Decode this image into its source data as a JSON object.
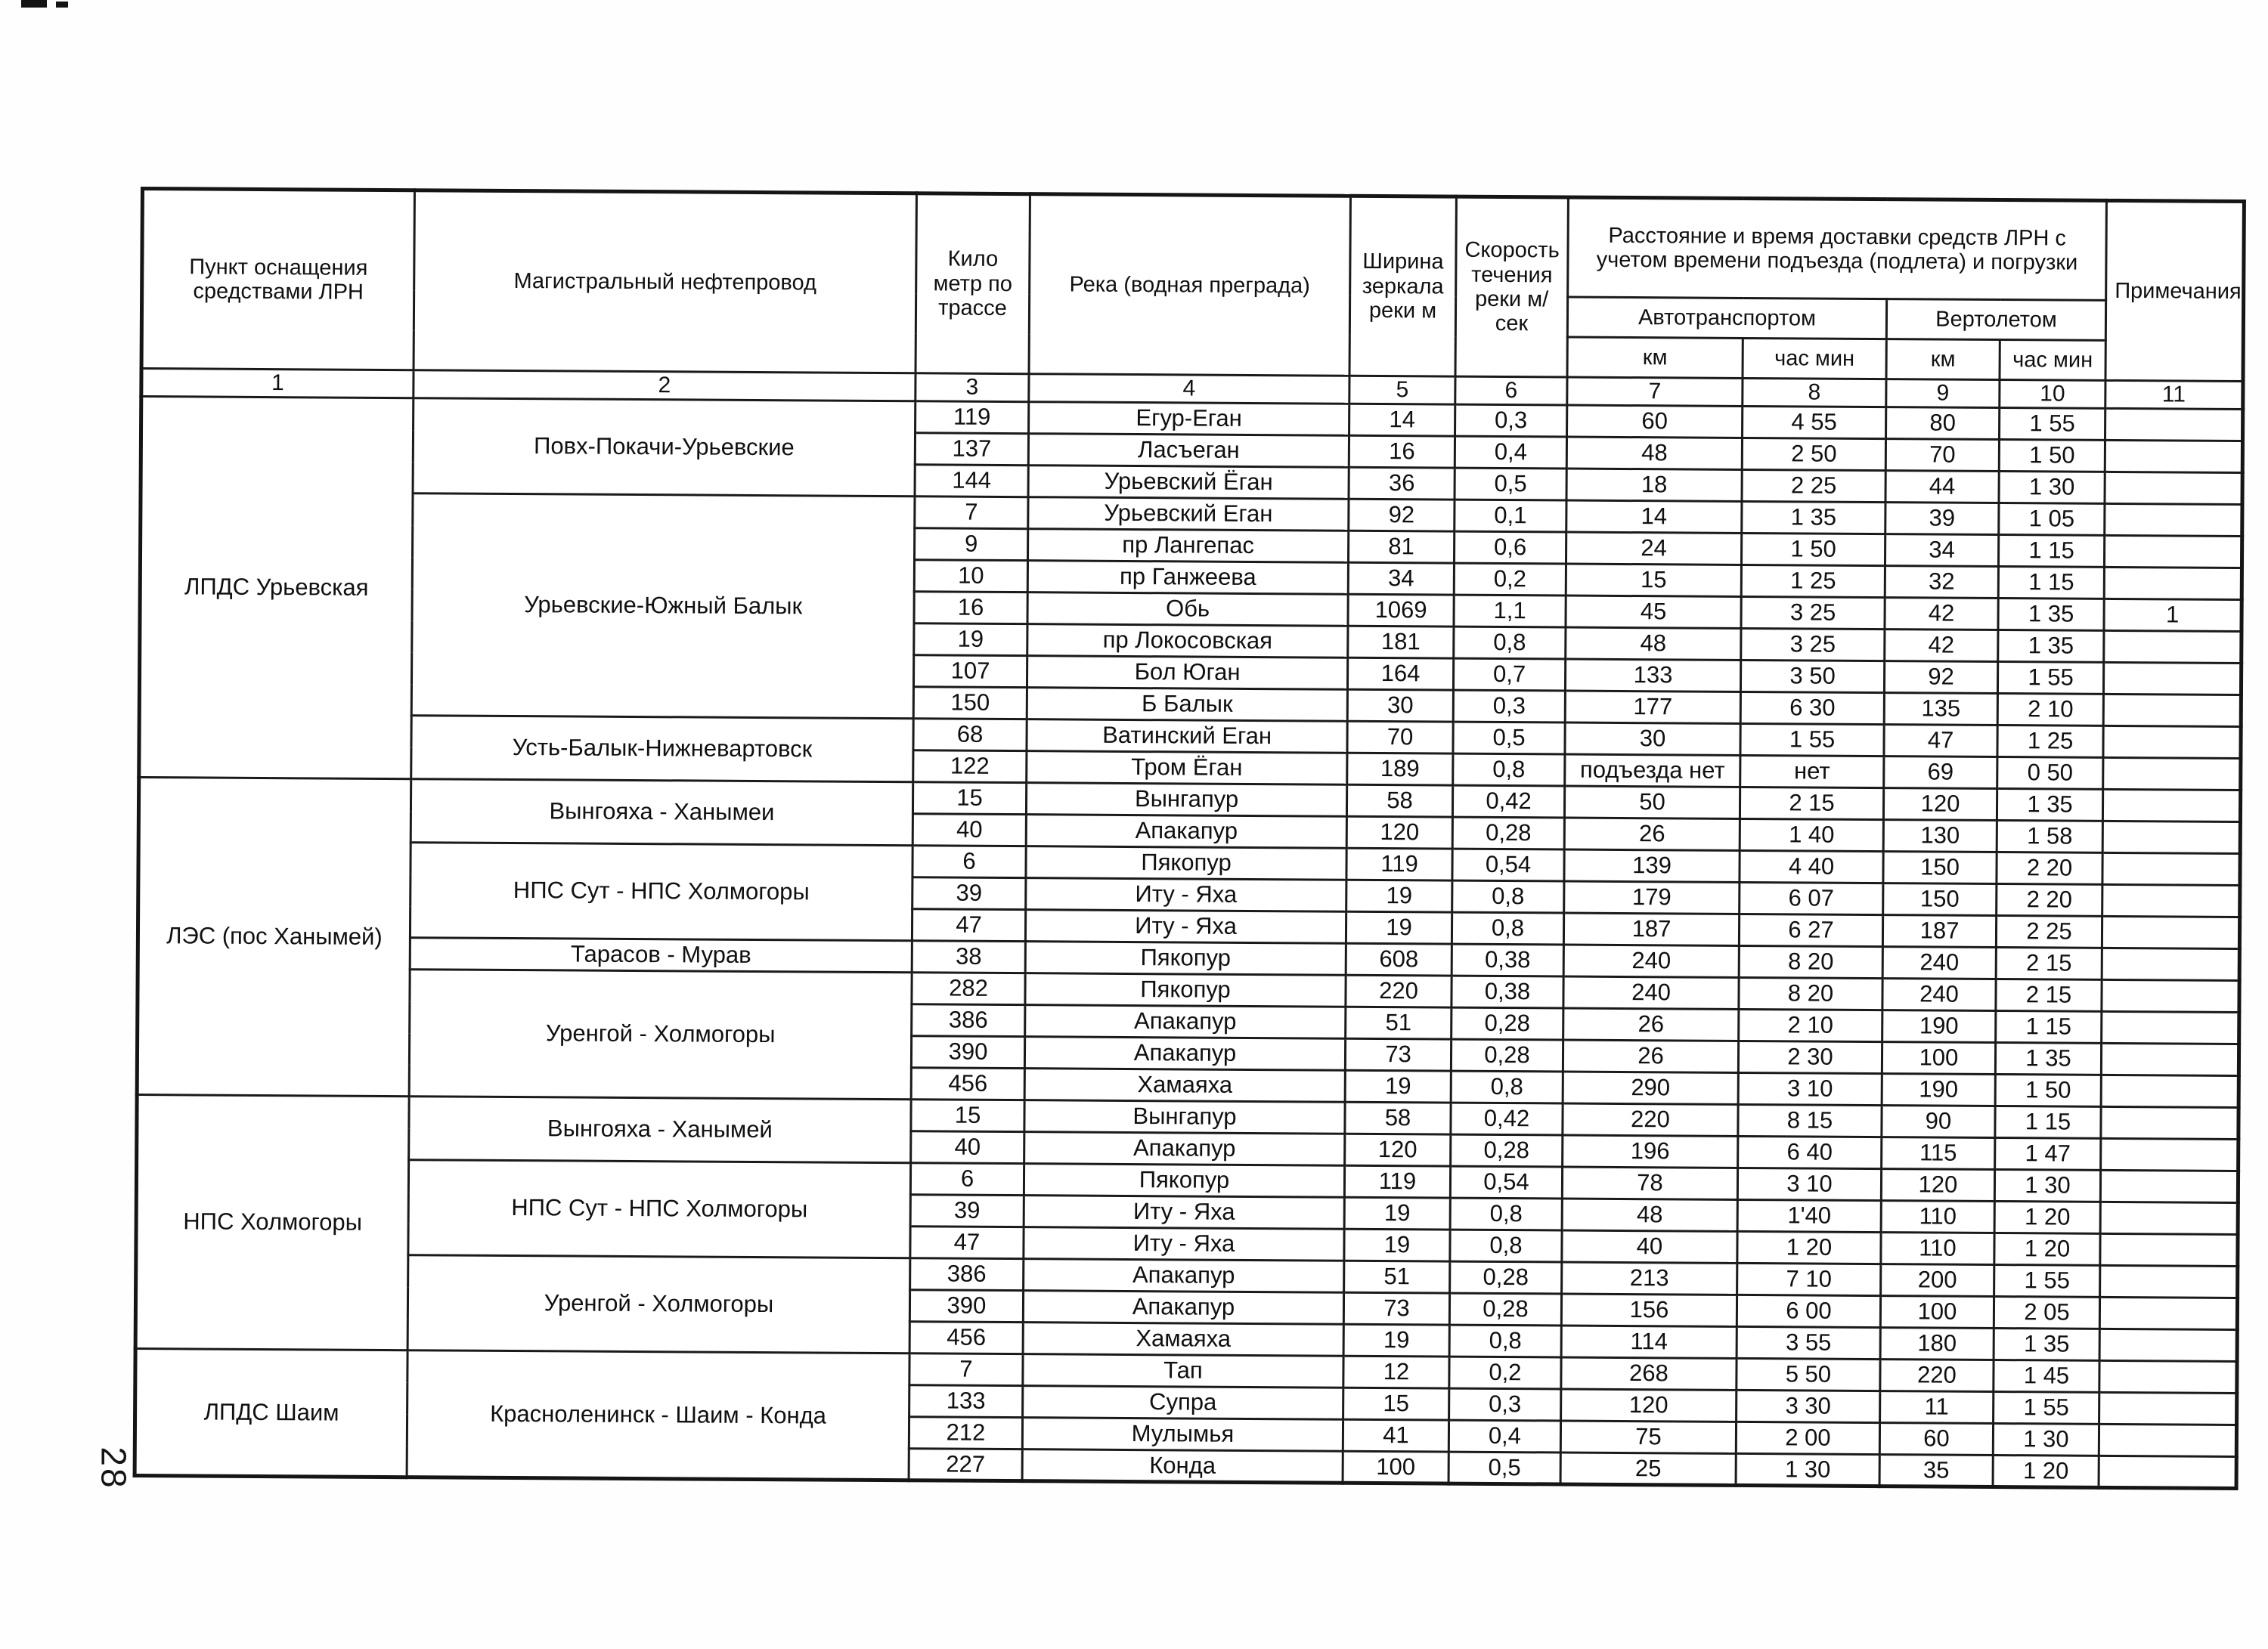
{
  "page_number": "28",
  "table": {
    "header": {
      "col_point": "Пункт оснащения средствами ЛРН",
      "col_pipeline": "Магистральный нефтепровод",
      "col_km_mark": "Кило метр по трассе",
      "col_river": "Река (водная преграда)",
      "col_width": "Ширина зеркала реки м",
      "col_speed": "Скорость течения реки м/сек",
      "col_delivery": "Расстояние и время доставки средств ЛРН с учетом времени подъезда (подлета) и погрузки",
      "col_auto": "Автотранспортом",
      "col_heli": "Вертолетом",
      "col_km_auto": "км",
      "col_time_auto": "час мин",
      "col_km_heli": "км",
      "col_time_heli": "час мин",
      "col_notes": "Примечания",
      "numbers": [
        "1",
        "2",
        "3",
        "4",
        "5",
        "6",
        "7",
        "8",
        "9",
        "10",
        "11"
      ]
    },
    "groups": [
      {
        "station": "ЛПДС Урьевская",
        "pipelines": [
          {
            "name": "Повх-Покачи-Урьевские",
            "rows": [
              [
                "119",
                "Егур-Еган",
                "14",
                "0,3",
                "60",
                "4 55",
                "80",
                "1 55",
                ""
              ],
              [
                "137",
                "Ласъеган",
                "16",
                "0,4",
                "48",
                "2 50",
                "70",
                "1 50",
                ""
              ],
              [
                "144",
                "Урьевский Ёган",
                "36",
                "0,5",
                "18",
                "2 25",
                "44",
                "1 30",
                ""
              ]
            ]
          },
          {
            "name": "Урьевские-Южный Балык",
            "rows": [
              [
                "7",
                "Урьевский Еган",
                "92",
                "0,1",
                "14",
                "1 35",
                "39",
                "1 05",
                ""
              ],
              [
                "9",
                "пр Лангепас",
                "81",
                "0,6",
                "24",
                "1 50",
                "34",
                "1 15",
                ""
              ],
              [
                "10",
                "пр Ганжеева",
                "34",
                "0,2",
                "15",
                "1 25",
                "32",
                "1 15",
                ""
              ],
              [
                "16",
                "Обь",
                "1069",
                "1,1",
                "45",
                "3 25",
                "42",
                "1 35",
                "1"
              ],
              [
                "19",
                "пр Локосовская",
                "181",
                "0,8",
                "48",
                "3 25",
                "42",
                "1 35",
                ""
              ],
              [
                "107",
                "Бол Юган",
                "164",
                "0,7",
                "133",
                "3 50",
                "92",
                "1 55",
                ""
              ],
              [
                "150",
                "Б Балык",
                "30",
                "0,3",
                "177",
                "6 30",
                "135",
                "2 10",
                ""
              ]
            ]
          },
          {
            "name": "Усть-Балык-Нижневартовск",
            "rows": [
              [
                "68",
                "Ватинский Еган",
                "70",
                "0,5",
                "30",
                "1 55",
                "47",
                "1 25",
                ""
              ],
              [
                "122",
                "Тром Ёган",
                "189",
                "0,8",
                "подъезда нет",
                "нет",
                "69",
                "0 50",
                ""
              ]
            ]
          }
        ]
      },
      {
        "station": "ЛЭС (пос Ханымей)",
        "pipelines": [
          {
            "name": "Вынгояха - Ханымеи",
            "rows": [
              [
                "15",
                "Вынгапур",
                "58",
                "0,42",
                "50",
                "2 15",
                "120",
                "1 35",
                ""
              ],
              [
                "40",
                "Апакапур",
                "120",
                "0,28",
                "26",
                "1 40",
                "130",
                "1 58",
                ""
              ]
            ]
          },
          {
            "name": "НПС Сут - НПС Холмогоры",
            "rows": [
              [
                "6",
                "Пякопур",
                "119",
                "0,54",
                "139",
                "4 40",
                "150",
                "2 20",
                ""
              ],
              [
                "39",
                "Иту - Яха",
                "19",
                "0,8",
                "179",
                "6 07",
                "150",
                "2 20",
                ""
              ],
              [
                "47",
                "Иту - Яха",
                "19",
                "0,8",
                "187",
                "6 27",
                "187",
                "2 25",
                ""
              ]
            ]
          },
          {
            "name": "Тарасов  - Мурав",
            "rows": [
              [
                "38",
                "Пякопур",
                "608",
                "0,38",
                "240",
                "8 20",
                "240",
                "2 15",
                ""
              ]
            ]
          },
          {
            "name": "Уренгой - Холмогоры",
            "rows": [
              [
                "282",
                "Пякопур",
                "220",
                "0,38",
                "240",
                "8 20",
                "240",
                "2 15",
                ""
              ],
              [
                "386",
                "Апакапур",
                "51",
                "0,28",
                "26",
                "2 10",
                "190",
                "1 15",
                ""
              ],
              [
                "390",
                "Апакапур",
                "73",
                "0,28",
                "26",
                "2 30",
                "100",
                "1 35",
                ""
              ],
              [
                "456",
                "Хамаяха",
                "19",
                "0,8",
                "290",
                "3 10",
                "190",
                "1 50",
                ""
              ]
            ]
          }
        ]
      },
      {
        "station": "НПС Холмогоры",
        "pipelines": [
          {
            "name": "Вынгояха - Ханымей",
            "rows": [
              [
                "15",
                "Вынгапур",
                "58",
                "0,42",
                "220",
                "8 15",
                "90",
                "1 15",
                ""
              ],
              [
                "40",
                "Апакапур",
                "120",
                "0,28",
                "196",
                "6 40",
                "115",
                "1 47",
                ""
              ]
            ]
          },
          {
            "name": "НПС Сут - НПС Холмогоры",
            "rows": [
              [
                "6",
                "Пякопур",
                "119",
                "0,54",
                "78",
                "3 10",
                "120",
                "1 30",
                ""
              ],
              [
                "39",
                "Иту - Яха",
                "19",
                "0,8",
                "48",
                "1'40",
                "110",
                "1 20",
                ""
              ],
              [
                "47",
                "Иту - Яха",
                "19",
                "0,8",
                "40",
                "1 20",
                "110",
                "1 20",
                ""
              ]
            ]
          },
          {
            "name": "Уренгой - Холмогоры",
            "rows": [
              [
                "386",
                "Апакапур",
                "51",
                "0,28",
                "213",
                "7 10",
                "200",
                "1 55",
                ""
              ],
              [
                "390",
                "Апакапур",
                "73",
                "0,28",
                "156",
                "6 00",
                "100",
                "2 05",
                ""
              ],
              [
                "456",
                "Хамаяха",
                "19",
                "0,8",
                "114",
                "3 55",
                "180",
                "1 35",
                ""
              ]
            ]
          }
        ]
      },
      {
        "station": "ЛПДС Шаим",
        "pipelines": [
          {
            "name": "Красноленинск - Шаим - Конда",
            "rows": [
              [
                "7",
                "Тап",
                "12",
                "0,2",
                "268",
                "5 50",
                "220",
                "1 45",
                ""
              ],
              [
                "133",
                "Супра",
                "15",
                "0,3",
                "120",
                "3 30",
                "11",
                "1 55",
                ""
              ],
              [
                "212",
                "Мулымья",
                "41",
                "0,4",
                "75",
                "2 00",
                "60",
                "1 30",
                ""
              ],
              [
                "227",
                "Конда",
                "100",
                "0,5",
                "25",
                "1 30",
                "35",
                "1 20",
                ""
              ]
            ]
          }
        ]
      }
    ]
  }
}
